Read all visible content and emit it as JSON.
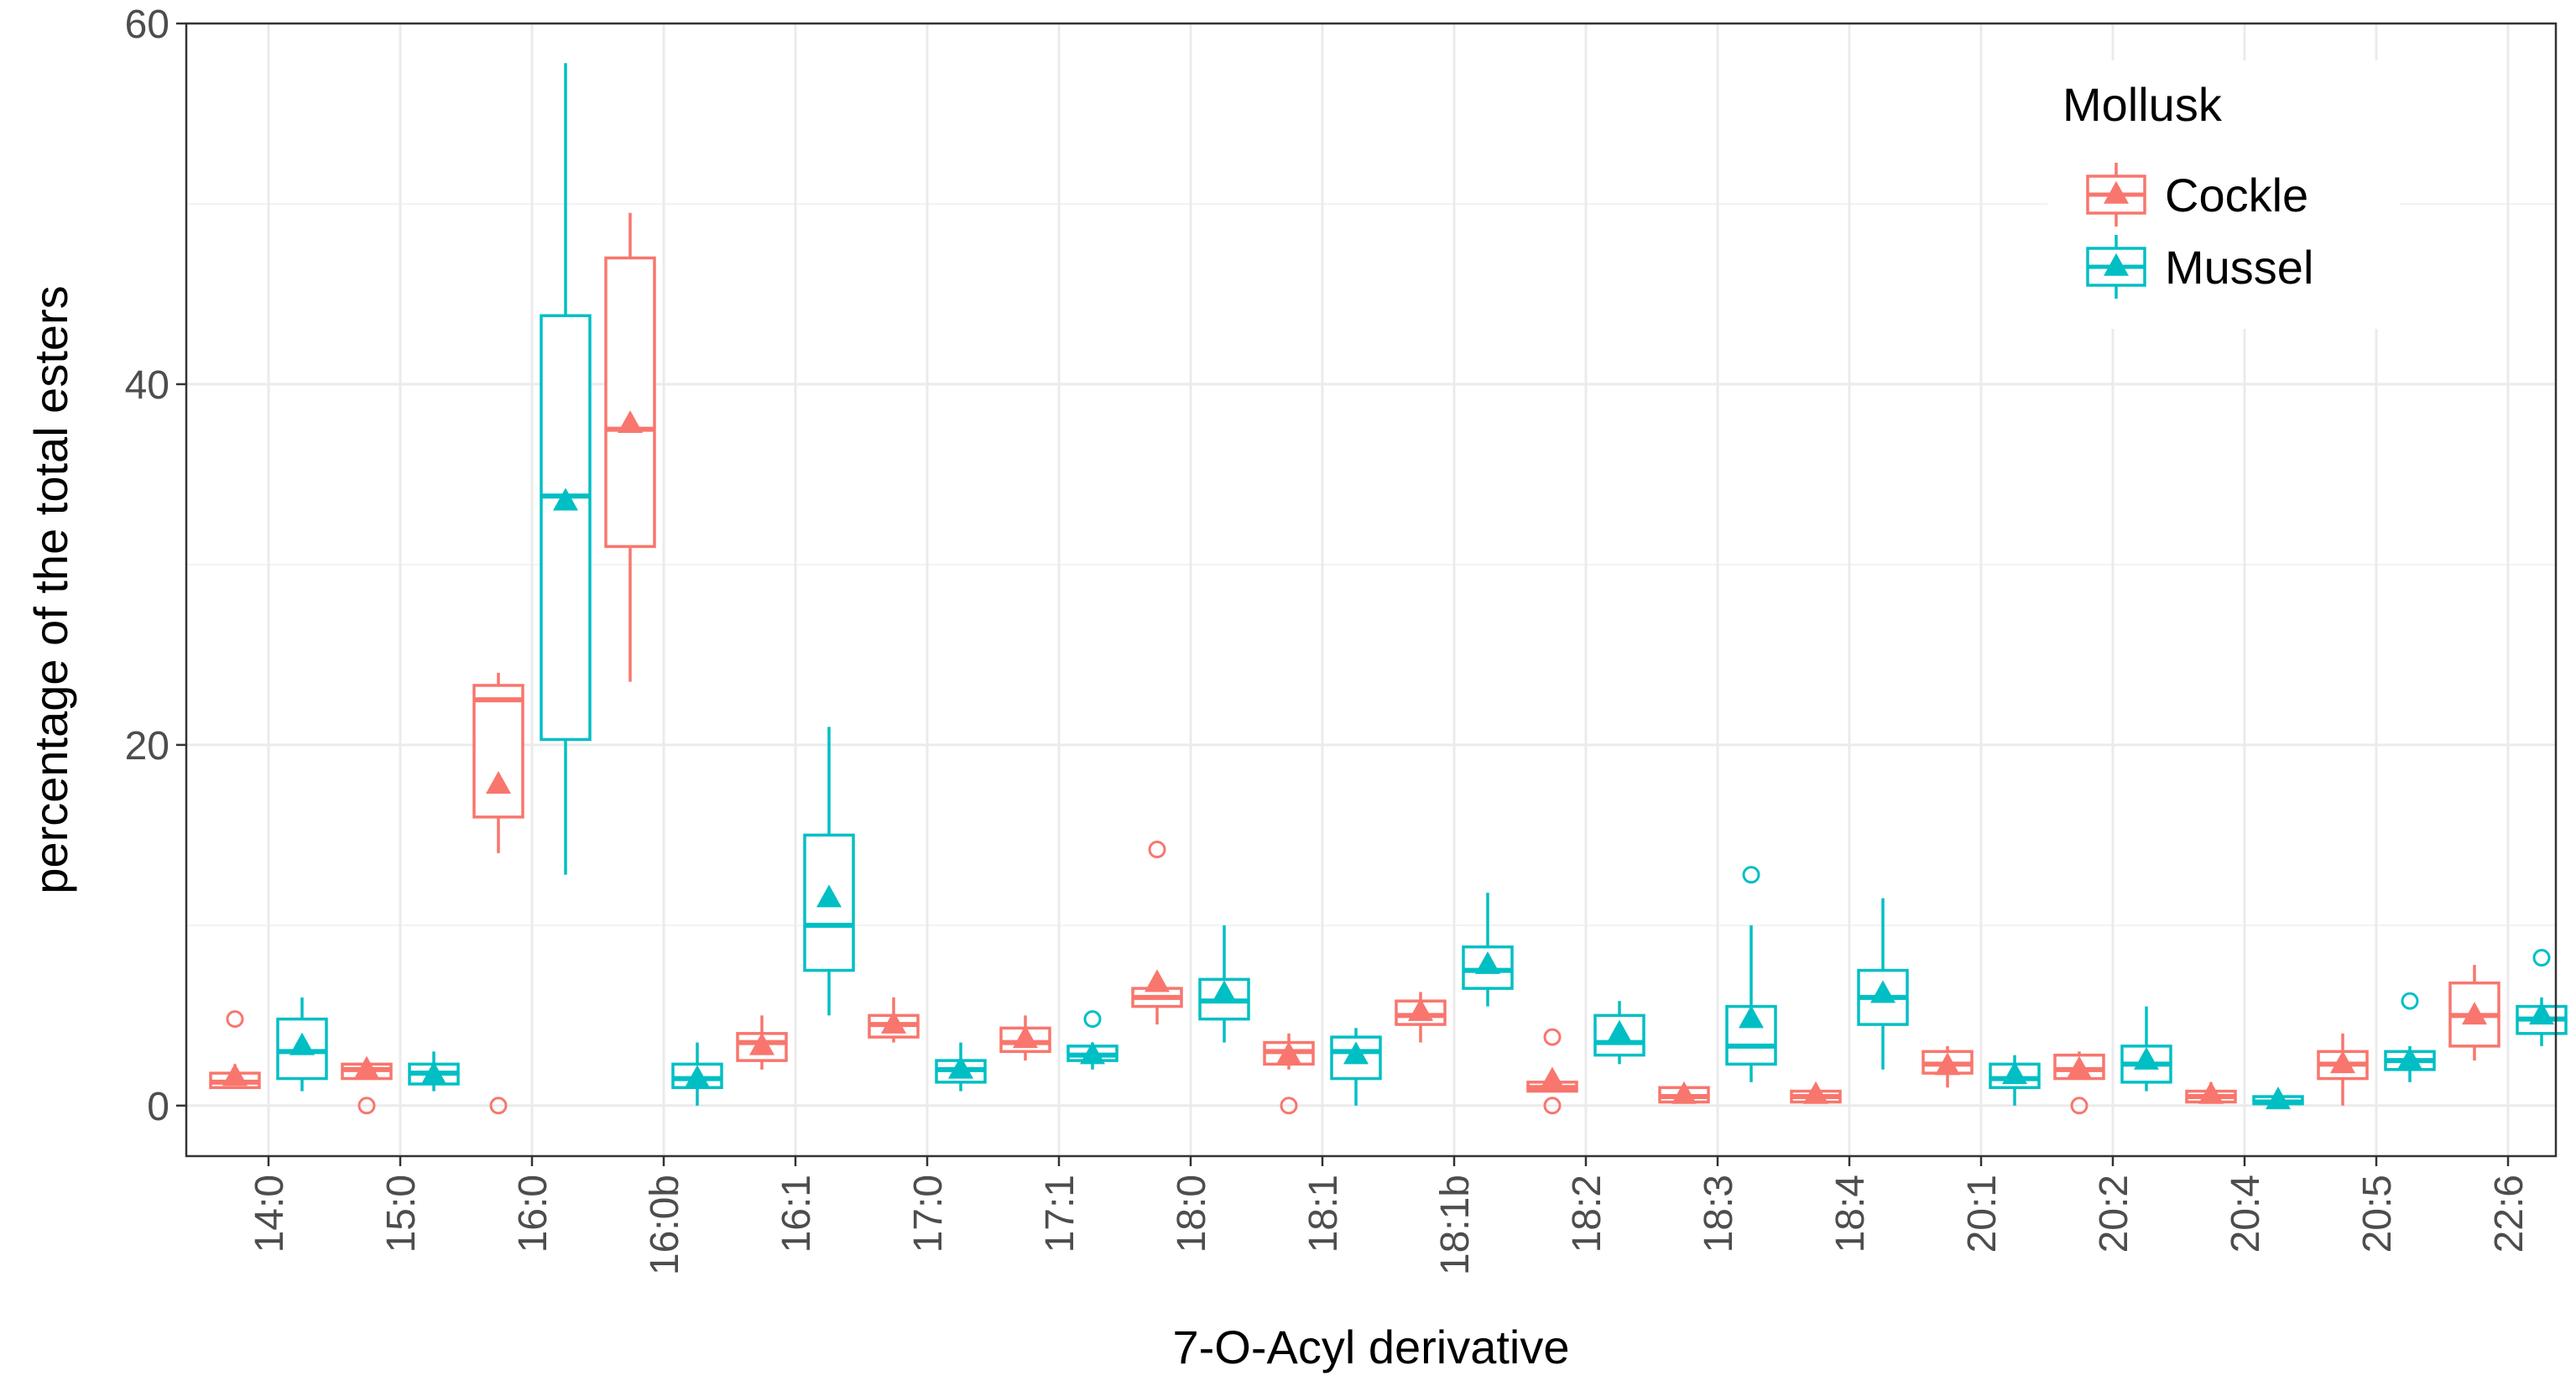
{
  "chart_data": {
    "type": "boxplot",
    "title": "",
    "xlabel": "7-O-Acyl derivative",
    "ylabel": "percentage of the total esters",
    "ylim": [
      -2.8,
      60
    ],
    "yticks": [
      0,
      20,
      40,
      60
    ],
    "grid": true,
    "legend": {
      "title": "Mollusk",
      "position": "top-right"
    },
    "categories": [
      "14:0",
      "15:0",
      "16:0",
      "16:0b",
      "16:1",
      "17:0",
      "17:1",
      "18:0",
      "18:1",
      "18:1b",
      "18:2",
      "18:3",
      "18:4",
      "20:1",
      "20:2",
      "20:4",
      "20:5",
      "22:6"
    ],
    "series": [
      {
        "name": "Cockle",
        "color": "#F8766D",
        "boxes": [
          {
            "category": "14:0",
            "q1": 1.0,
            "median": 1.3,
            "q3": 1.8,
            "low": 1.0,
            "high": 2.3,
            "mean": 1.6,
            "outliers": [
              4.8
            ]
          },
          {
            "category": "15:0",
            "q1": 1.5,
            "median": 2.0,
            "q3": 2.3,
            "low": 1.5,
            "high": 2.6,
            "mean": 2.0,
            "outliers": [
              0
            ]
          },
          {
            "category": "16:0",
            "q1": 16.0,
            "median": 22.5,
            "q3": 23.3,
            "low": 14.0,
            "high": 24.0,
            "mean": 17.8,
            "outliers": [
              0
            ]
          },
          {
            "category": "16:0b",
            "q1": 31.0,
            "median": 37.5,
            "q3": 47.0,
            "low": 23.5,
            "high": 49.5,
            "mean": 37.8,
            "outliers": []
          },
          {
            "category": "16:1",
            "q1": 2.5,
            "median": 3.5,
            "q3": 4.0,
            "low": 2.0,
            "high": 5.0,
            "mean": 3.3,
            "outliers": []
          },
          {
            "category": "17:0",
            "q1": 3.8,
            "median": 4.5,
            "q3": 5.0,
            "low": 3.5,
            "high": 6.0,
            "mean": 4.5,
            "outliers": []
          },
          {
            "category": "17:1",
            "q1": 3.0,
            "median": 3.5,
            "q3": 4.3,
            "low": 2.5,
            "high": 5.0,
            "mean": 3.7,
            "outliers": []
          },
          {
            "category": "18:0",
            "q1": 5.5,
            "median": 6.0,
            "q3": 6.5,
            "low": 4.5,
            "high": 7.0,
            "mean": 6.8,
            "outliers": [
              14.2
            ]
          },
          {
            "category": "18:1",
            "q1": 2.3,
            "median": 3.0,
            "q3": 3.5,
            "low": 2.0,
            "high": 4.0,
            "mean": 2.8,
            "outliers": [
              0
            ]
          },
          {
            "category": "18:1b",
            "q1": 4.5,
            "median": 5.0,
            "q3": 5.8,
            "low": 3.5,
            "high": 6.3,
            "mean": 5.2,
            "outliers": []
          },
          {
            "category": "18:2",
            "q1": 0.8,
            "median": 1.0,
            "q3": 1.3,
            "low": 0.8,
            "high": 1.5,
            "mean": 1.4,
            "outliers": [
              3.8,
              0
            ]
          },
          {
            "category": "18:3",
            "q1": 0.2,
            "median": 0.5,
            "q3": 1.0,
            "low": 0.2,
            "high": 1.2,
            "mean": 0.6,
            "outliers": []
          },
          {
            "category": "18:4",
            "q1": 0.2,
            "median": 0.5,
            "q3": 0.8,
            "low": 0.2,
            "high": 1.2,
            "mean": 0.6,
            "outliers": []
          },
          {
            "category": "20:1",
            "q1": 1.8,
            "median": 2.3,
            "q3": 3.0,
            "low": 1.0,
            "high": 3.3,
            "mean": 2.2,
            "outliers": []
          },
          {
            "category": "20:2",
            "q1": 1.5,
            "median": 2.0,
            "q3": 2.8,
            "low": 1.5,
            "high": 3.0,
            "mean": 2.0,
            "outliers": [
              0
            ]
          },
          {
            "category": "20:4",
            "q1": 0.2,
            "median": 0.5,
            "q3": 0.8,
            "low": 0.2,
            "high": 1.3,
            "mean": 0.6,
            "outliers": []
          },
          {
            "category": "20:5",
            "q1": 1.5,
            "median": 2.3,
            "q3": 3.0,
            "low": 0.0,
            "high": 4.0,
            "mean": 2.3,
            "outliers": []
          },
          {
            "category": "22:6",
            "q1": 3.3,
            "median": 5.0,
            "q3": 6.8,
            "low": 2.5,
            "high": 7.8,
            "mean": 5.0,
            "outliers": []
          }
        ]
      },
      {
        "name": "Mussel",
        "color": "#00BFC4",
        "boxes": [
          {
            "category": "14:0",
            "q1": 1.5,
            "median": 3.0,
            "q3": 4.8,
            "low": 0.8,
            "high": 6.0,
            "mean": 3.3,
            "outliers": []
          },
          {
            "category": "15:0",
            "q1": 1.2,
            "median": 1.8,
            "q3": 2.3,
            "low": 0.8,
            "high": 3.0,
            "mean": 1.7,
            "outliers": []
          },
          {
            "category": "16:0",
            "q1": 20.3,
            "median": 33.8,
            "q3": 43.8,
            "low": 12.8,
            "high": 57.8,
            "mean": 33.5,
            "outliers": []
          },
          {
            "category": "16:0b",
            "q1": 1.0,
            "median": 1.5,
            "q3": 2.3,
            "low": 0.0,
            "high": 3.5,
            "mean": 1.5,
            "outliers": []
          },
          {
            "category": "16:1",
            "q1": 7.5,
            "median": 10.0,
            "q3": 15.0,
            "low": 5.0,
            "high": 21.0,
            "mean": 11.5,
            "outliers": []
          },
          {
            "category": "17:0",
            "q1": 1.3,
            "median": 2.0,
            "q3": 2.5,
            "low": 0.8,
            "high": 3.5,
            "mean": 2.0,
            "outliers": []
          },
          {
            "category": "17:1",
            "q1": 2.5,
            "median": 2.8,
            "q3": 3.3,
            "low": 2.0,
            "high": 3.5,
            "mean": 2.8,
            "outliers": [
              4.8
            ]
          },
          {
            "category": "18:0",
            "q1": 4.8,
            "median": 5.8,
            "q3": 7.0,
            "low": 3.5,
            "high": 10.0,
            "mean": 6.2,
            "outliers": []
          },
          {
            "category": "18:1",
            "q1": 1.5,
            "median": 3.0,
            "q3": 3.8,
            "low": 0.0,
            "high": 4.3,
            "mean": 2.8,
            "outliers": []
          },
          {
            "category": "18:1b",
            "q1": 6.5,
            "median": 7.5,
            "q3": 8.8,
            "low": 5.5,
            "high": 11.8,
            "mean": 7.8,
            "outliers": []
          },
          {
            "category": "18:2",
            "q1": 2.8,
            "median": 3.5,
            "q3": 5.0,
            "low": 2.3,
            "high": 5.8,
            "mean": 4.0,
            "outliers": []
          },
          {
            "category": "18:3",
            "q1": 2.3,
            "median": 3.3,
            "q3": 5.5,
            "low": 1.3,
            "high": 10.0,
            "mean": 4.8,
            "outliers": [
              12.8
            ]
          },
          {
            "category": "18:4",
            "q1": 4.5,
            "median": 6.0,
            "q3": 7.5,
            "low": 2.0,
            "high": 11.5,
            "mean": 6.2,
            "outliers": []
          },
          {
            "category": "20:1",
            "q1": 1.0,
            "median": 1.5,
            "q3": 2.3,
            "low": 0.0,
            "high": 2.8,
            "mean": 1.7,
            "outliers": []
          },
          {
            "category": "20:2",
            "q1": 1.3,
            "median": 2.3,
            "q3": 3.3,
            "low": 0.8,
            "high": 5.5,
            "mean": 2.5,
            "outliers": []
          },
          {
            "category": "20:4",
            "q1": 0.1,
            "median": 0.2,
            "q3": 0.5,
            "low": 0.0,
            "high": 0.6,
            "mean": 0.3,
            "outliers": []
          },
          {
            "category": "20:5",
            "q1": 2.0,
            "median": 2.5,
            "q3": 3.0,
            "low": 1.3,
            "high": 3.3,
            "mean": 2.5,
            "outliers": [
              5.8
            ]
          },
          {
            "category": "22:6",
            "q1": 4.0,
            "median": 4.8,
            "q3": 5.5,
            "low": 3.3,
            "high": 6.0,
            "mean": 5.0,
            "outliers": [
              8.2
            ]
          }
        ]
      }
    ]
  }
}
